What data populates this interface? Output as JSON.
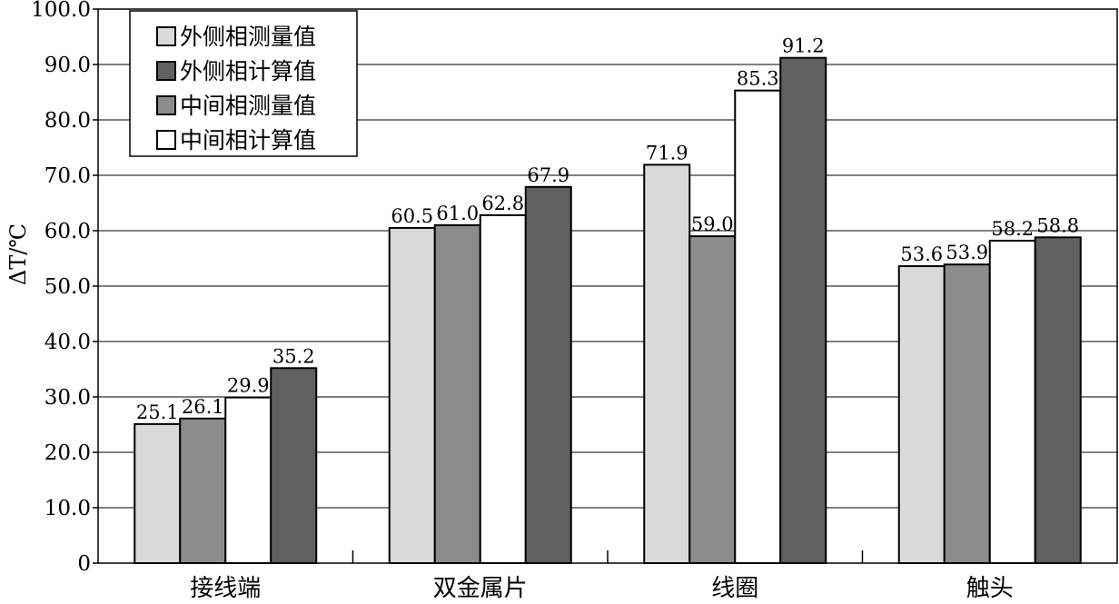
{
  "chart_data": {
    "type": "bar",
    "ylabel": "ΔT/℃",
    "ylim": [
      0,
      100
    ],
    "ytick_step": 10,
    "ytick_labels": [
      "0",
      "10.0",
      "20.0",
      "30.0",
      "40.0",
      "50.0",
      "60.0",
      "70.0",
      "80.0",
      "90.0",
      "100.0"
    ],
    "grid": true,
    "legend_position": "top-left",
    "categories": [
      "接线端",
      "双金属片",
      "线圈",
      "触头"
    ],
    "series": [
      {
        "name": "外侧相测量值",
        "color": "#d9d9d9",
        "values": [
          25.1,
          60.5,
          71.9,
          53.6
        ]
      },
      {
        "name": "外侧相计算值",
        "color": "#606060",
        "values": [
          35.2,
          67.9,
          91.2,
          58.8
        ]
      },
      {
        "name": "中间相测量值",
        "color": "#8c8c8c",
        "values": [
          26.1,
          61.0,
          59.0,
          53.9
        ]
      },
      {
        "name": "中间相计算值",
        "color": "#ffffff",
        "values": [
          29.9,
          62.8,
          85.3,
          58.2
        ]
      }
    ],
    "bar_order": [
      0,
      2,
      3,
      1
    ]
  }
}
